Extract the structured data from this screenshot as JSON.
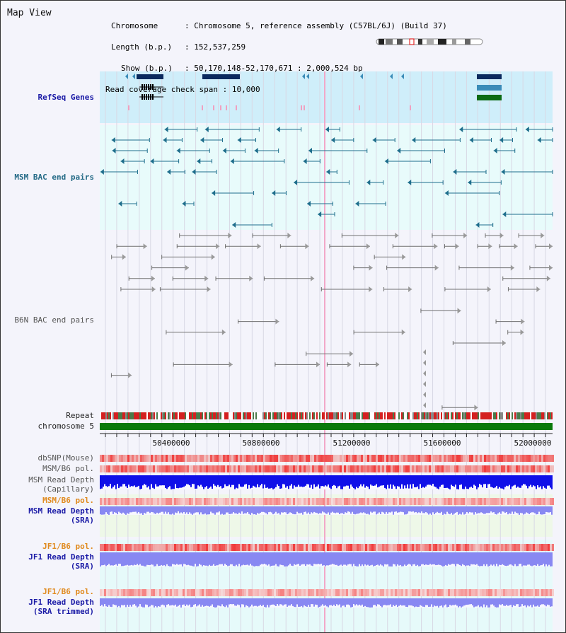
{
  "title": "Map View",
  "info": {
    "chromosome_key": "Chromosome",
    "chromosome_value": "Chromosome 5, reference assembly (C57BL/6J) (Build 37)",
    "length_key": "Length (b.p.)",
    "length_value": "152,537,259",
    "show_key": "Show (b.p.)",
    "show_value": "50,170,148-52,170,671 : 2,000,524 bp",
    "coverage_key": "Read coverage check span",
    "coverage_value": "10,000"
  },
  "tracks": {
    "refseq": "RefSeq Genes",
    "msm_bac": "MSM BAC end pairs",
    "b6n_bac": "B6N BAC end pairs",
    "repeat": "Repeat",
    "chromosome": "chromosome 5",
    "dbsnp": "dbSNP(Mouse)",
    "msm_b6_pol": "MSM/B6 pol.",
    "msm_read_depth_cap_1": "MSM Read Depth",
    "msm_read_depth_cap_2": "(Capillary)",
    "msm_b6_pol_sra": "MSM/B6 pol.",
    "msm_read_depth_sra_1": "MSM Read Depth",
    "msm_read_depth_sra_2": "(SRA)",
    "jf1_b6_pol_1": "JF1/B6 pol.",
    "jf1_read_depth_sra_1": "JF1 Read Depth",
    "jf1_read_depth_sra_2": "(SRA)",
    "jf1_b6_pol_2": "JF1/B6 pol.",
    "jf1_read_depth_trim_1": "JF1 Read Depth",
    "jf1_read_depth_trim_2": "(SRA trimmed)"
  },
  "axis": {
    "ticks": [
      "50400000",
      "50800000",
      "51200000",
      "51600000",
      "52000000"
    ]
  },
  "colors": {
    "refseq_bg": "#cfeefa",
    "bac_bg": "#e8fbfb",
    "gene_dark": "#0a2a5e",
    "gene_mid": "#3b8cb8",
    "gene_green": "#0b6b14",
    "bac_teal": "#1e6e8c",
    "bac_gray": "#707070",
    "chromosome_green": "#0a7a0a",
    "repeat_red": "#d42020",
    "depth_blue": "#1010e8",
    "depth_light": "#8888f2",
    "highlight_line": "#f2a8c8"
  }
}
